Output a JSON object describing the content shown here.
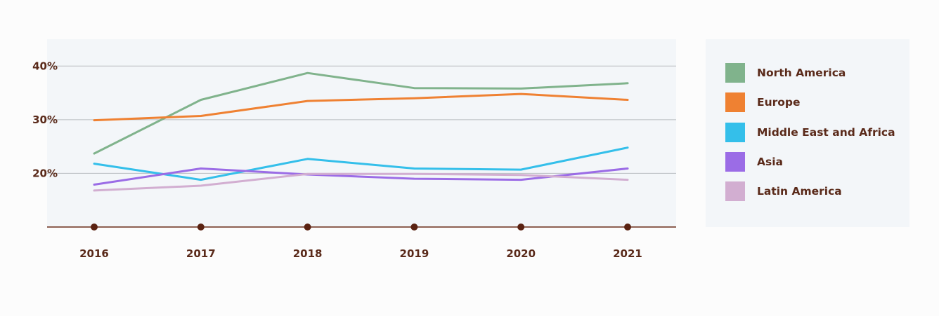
{
  "chart_data": {
    "type": "line",
    "title": "",
    "xlabel": "",
    "ylabel": "",
    "x": [
      "2016",
      "2017",
      "2018",
      "2019",
      "2020",
      "2021"
    ],
    "ylim": [
      10,
      45
    ],
    "yticks": [
      20,
      30,
      40
    ],
    "ytick_labels": [
      "20%",
      "30%",
      "40%"
    ],
    "grid": true,
    "legend_position": "right",
    "series": [
      {
        "name": "North America",
        "color": "#80b38c",
        "values": [
          23.7,
          33.7,
          38.7,
          35.9,
          35.8,
          36.8
        ]
      },
      {
        "name": "Europe",
        "color": "#ef8132",
        "values": [
          29.9,
          30.7,
          33.5,
          34.0,
          34.8,
          33.7
        ]
      },
      {
        "name": "Middle East and Africa",
        "color": "#34bfea",
        "values": [
          21.8,
          18.8,
          22.7,
          20.9,
          20.7,
          24.8
        ]
      },
      {
        "name": "Asia",
        "color": "#9b6ce6",
        "values": [
          17.9,
          20.9,
          19.8,
          19.0,
          18.8,
          20.9
        ]
      },
      {
        "name": "Latin America",
        "color": "#d2aed1",
        "values": [
          16.8,
          17.7,
          19.9,
          19.9,
          19.7,
          18.8
        ]
      }
    ]
  }
}
